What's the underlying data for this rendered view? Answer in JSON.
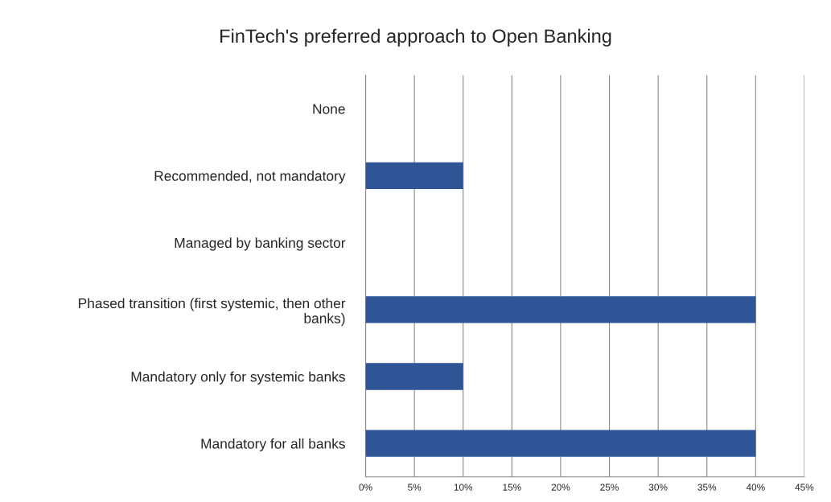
{
  "chart_data": {
    "type": "bar",
    "orientation": "horizontal",
    "title": "FinTech's preferred approach to Open Banking",
    "categories": [
      "None",
      "Recommended, not mandatory",
      "Managed by banking sector",
      "Phased transition (first systemic, then other\nbanks)",
      "Mandatory only for systemic banks",
      "Mandatory for all banks"
    ],
    "values": [
      0,
      10,
      0,
      40,
      10,
      40
    ],
    "color": "#2f5597",
    "xlim": [
      0,
      45
    ],
    "xticks": [
      {
        "value": 0,
        "label": "0%"
      },
      {
        "value": 5,
        "label": "5%"
      },
      {
        "value": 10,
        "label": "10%"
      },
      {
        "value": 15,
        "label": "15%"
      },
      {
        "value": 20,
        "label": "20%"
      },
      {
        "value": 25,
        "label": "25%"
      },
      {
        "value": 30,
        "label": "30%"
      },
      {
        "value": 35,
        "label": "35%"
      },
      {
        "value": 40,
        "label": "40%"
      },
      {
        "value": 45,
        "label": "45%"
      }
    ],
    "grid": "x"
  }
}
